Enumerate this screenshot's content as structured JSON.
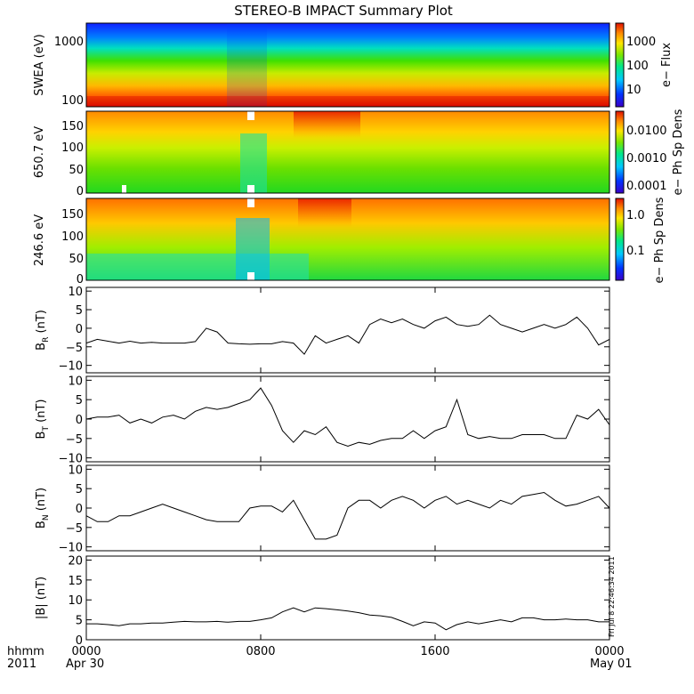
{
  "title": "STEREO-B IMPACT Summary Plot",
  "footer": {
    "hhmm": "hhmm",
    "year": "2011",
    "ticks": [
      "0000",
      "0800",
      "1600",
      "0000"
    ],
    "date_start": "Apr 30",
    "date_end": "May 01",
    "stamp": "Fri Jul 8 22:46:34 2011"
  },
  "colors": {
    "line": "#000000",
    "spectrogram_scale": [
      "#3a00c8",
      "#0033ff",
      "#00c8ff",
      "#00e88a",
      "#7ae600",
      "#ffe600",
      "#ff8a00",
      "#e01000"
    ]
  },
  "chart_data": [
    {
      "type": "heatmap",
      "panel": "swea",
      "ylabel": "SWEA (eV)",
      "yscale": "log",
      "yticks": [
        "1000",
        "100"
      ],
      "colorbar": {
        "label": "e− Flux",
        "ticks": [
          "1000",
          "100",
          "10"
        ]
      }
    },
    {
      "type": "heatmap",
      "panel": "pad650",
      "ylabel": "650.7 eV",
      "yticks": [
        "150",
        "100",
        "50",
        "0"
      ],
      "ylim": [
        0,
        180
      ],
      "colorbar": {
        "label": "e− Ph Sp Dens",
        "ticks": [
          "0.0100",
          "0.0010",
          "0.0001"
        ]
      }
    },
    {
      "type": "heatmap",
      "panel": "pad246",
      "ylabel": "246.6 eV",
      "yticks": [
        "150",
        "100",
        "50",
        "0"
      ],
      "ylim": [
        0,
        180
      ],
      "colorbar": {
        "label": "e− Ph Sp Dens",
        "ticks": [
          "1.0",
          "0.1"
        ]
      }
    },
    {
      "type": "line",
      "panel": "br",
      "ylabel_main": "B",
      "ylabel_sub": "R",
      "ylabel_unit": " (nT)",
      "ylim": [
        -12,
        11
      ],
      "yticks": [
        "10",
        "5",
        "0",
        "−5",
        "−10"
      ],
      "x": [
        0,
        0.5,
        1,
        1.5,
        2,
        2.5,
        3,
        3.5,
        4,
        4.5,
        5,
        5.5,
        6,
        6.5,
        7,
        7.5,
        8,
        8.5,
        9,
        9.5,
        10,
        10.5,
        11,
        11.5,
        12,
        12.5,
        13,
        13.5,
        14,
        14.5,
        15,
        15.5,
        16,
        16.5,
        17,
        17.5,
        18,
        18.5,
        19,
        19.5,
        20,
        20.5,
        21,
        21.5,
        22,
        22.5,
        23,
        23.5,
        24
      ],
      "values": [
        -4,
        -3,
        -3.5,
        -4,
        -3.5,
        -4,
        -3.8,
        -4,
        -4,
        -4,
        -3.6,
        0,
        -1,
        -4,
        -4.2,
        -4.3,
        -4.2,
        -4.2,
        -3.6,
        -4,
        -7,
        -2,
        -4,
        -3,
        -2,
        -4,
        1,
        2.5,
        1.5,
        2.5,
        1,
        0,
        2,
        3,
        1,
        0.5,
        1,
        3.5,
        1,
        0,
        -1,
        0,
        1,
        0,
        1,
        3,
        0,
        -4.5,
        -3
      ]
    },
    {
      "type": "line",
      "panel": "bt",
      "ylabel_main": "B",
      "ylabel_sub": "T",
      "ylabel_unit": " (nT)",
      "ylim": [
        -11,
        11
      ],
      "yticks": [
        "10",
        "5",
        "0",
        "−5",
        "−10"
      ],
      "x": [
        0,
        0.5,
        1,
        1.5,
        2,
        2.5,
        3,
        3.5,
        4,
        4.5,
        5,
        5.5,
        6,
        6.5,
        7,
        7.5,
        8,
        8.5,
        9,
        9.5,
        10,
        10.5,
        11,
        11.5,
        12,
        12.5,
        13,
        13.5,
        14,
        14.5,
        15,
        15.5,
        16,
        16.5,
        17,
        17.5,
        18,
        18.5,
        19,
        19.5,
        20,
        20.5,
        21,
        21.5,
        22,
        22.5,
        23,
        23.5,
        24
      ],
      "values": [
        0,
        0.5,
        0.5,
        1,
        -1,
        0,
        -1,
        0.5,
        1,
        0,
        2,
        3,
        2.5,
        3,
        4,
        5,
        8,
        3.5,
        -3,
        -6,
        -3,
        -4,
        -2,
        -6,
        -7,
        -6,
        -6.5,
        -5.5,
        -5,
        -5,
        -3,
        -5,
        -3,
        -2,
        5,
        -4,
        -5,
        -4.5,
        -5,
        -5,
        -4,
        -4,
        -4,
        -5,
        -5,
        1,
        0,
        2.5,
        -1.5
      ]
    },
    {
      "type": "line",
      "panel": "bn",
      "ylabel_main": "B",
      "ylabel_sub": "N",
      "ylabel_unit": " (nT)",
      "ylim": [
        -11,
        11
      ],
      "yticks": [
        "10",
        "5",
        "0",
        "−5",
        "−10"
      ],
      "x": [
        0,
        0.5,
        1,
        1.5,
        2,
        2.5,
        3,
        3.5,
        4,
        4.5,
        5,
        5.5,
        6,
        6.5,
        7,
        7.5,
        8,
        8.5,
        9,
        9.5,
        10,
        10.5,
        11,
        11.5,
        12,
        12.5,
        13,
        13.5,
        14,
        14.5,
        15,
        15.5,
        16,
        16.5,
        17,
        17.5,
        18,
        18.5,
        19,
        19.5,
        20,
        20.5,
        21,
        21.5,
        22,
        22.5,
        23,
        23.5,
        24
      ],
      "values": [
        -2,
        -3.5,
        -3.5,
        -2,
        -2,
        -1,
        0,
        1,
        0,
        -1,
        -2,
        -3,
        -3.5,
        -3.5,
        -3.5,
        0,
        0.5,
        0.5,
        -1,
        2,
        -3,
        -8,
        -8,
        -7,
        0,
        2,
        2,
        0,
        2,
        3,
        2,
        0,
        2,
        3,
        1,
        2,
        1,
        0,
        2,
        1,
        3,
        3.5,
        4,
        2,
        0.5,
        1,
        2,
        3,
        0
      ]
    },
    {
      "type": "line",
      "panel": "bmag",
      "ylabel": "|B| (nT)",
      "ylim": [
        0,
        21
      ],
      "yticks": [
        "20",
        "15",
        "10",
        "5",
        "0"
      ],
      "x": [
        0,
        0.5,
        1,
        1.5,
        2,
        2.5,
        3,
        3.5,
        4,
        4.5,
        5,
        5.5,
        6,
        6.5,
        7,
        7.5,
        8,
        8.5,
        9,
        9.5,
        10,
        10.5,
        11,
        11.5,
        12,
        12.5,
        13,
        13.5,
        14,
        14.5,
        15,
        15.5,
        16,
        16.5,
        17,
        17.5,
        18,
        18.5,
        19,
        19.5,
        20,
        20.5,
        21,
        21.5,
        22,
        22.5,
        23,
        23.5,
        24
      ],
      "values": [
        4,
        4,
        3.8,
        3.5,
        4,
        4,
        4.2,
        4.2,
        4.4,
        4.6,
        4.5,
        4.5,
        4.6,
        4.4,
        4.6,
        4.6,
        5,
        5.5,
        7,
        8,
        7,
        8,
        7.8,
        7.5,
        7.2,
        6.8,
        6.2,
        6,
        5.6,
        4.6,
        3.5,
        4.5,
        4.2,
        2.5,
        3.8,
        4.5,
        4,
        4.5,
        5,
        4.5,
        5.5,
        5.5,
        5,
        5,
        5.2,
        5,
        5,
        4.5,
        4.5
      ]
    }
  ]
}
